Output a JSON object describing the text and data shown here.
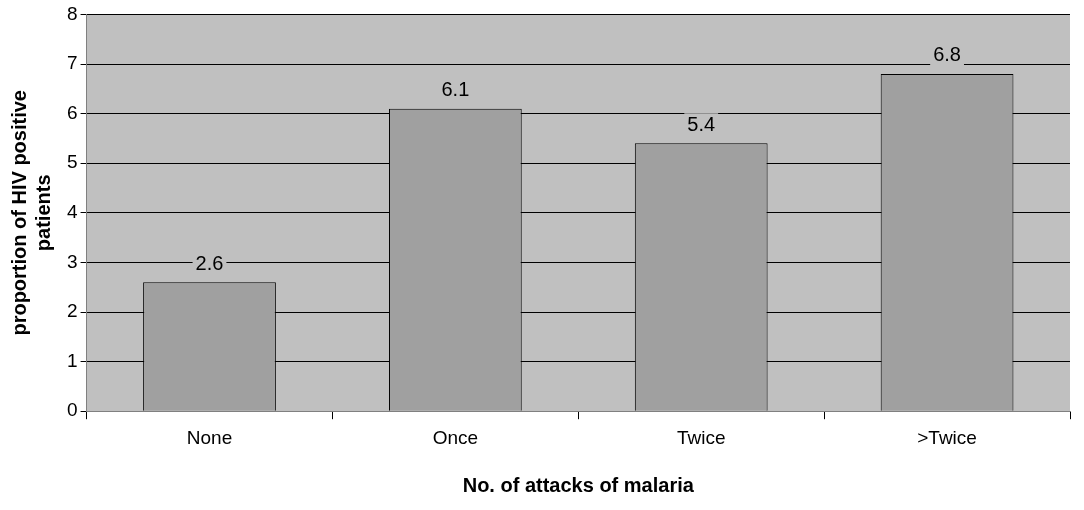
{
  "chart_data": {
    "type": "bar",
    "xlabel": "No. of attacks of malaria",
    "ylabel": "proportion of HIV positive patients",
    "categories": [
      "None",
      "Once",
      "Twice",
      ">Twice"
    ],
    "values": [
      2.6,
      6.1,
      5.4,
      6.8
    ],
    "color": "#a0a0a0",
    "ylim": [
      0,
      8
    ],
    "yticks": [
      0,
      1,
      2,
      3,
      4,
      5,
      6,
      7,
      8
    ],
    "grid": "y",
    "legend": false,
    "data_labels": true
  }
}
